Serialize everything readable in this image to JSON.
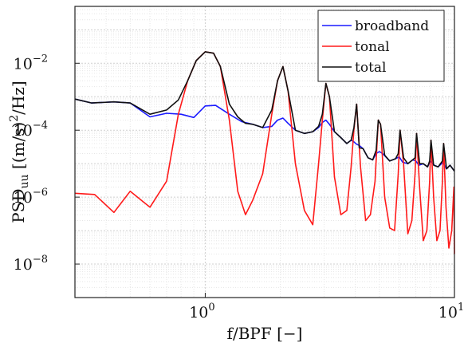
{
  "chart_data": {
    "type": "line",
    "xscale": "log",
    "yscale": "log",
    "xlim": [
      0.3,
      10
    ],
    "ylim": [
      1e-09,
      0.5
    ],
    "xlabel": "f/BPF [−]",
    "ylabel": {
      "base": "PSD",
      "sub": "uu",
      "units": "[(m/s)",
      "sup": "2",
      "tail": "/Hz]"
    },
    "x_ticks": [
      {
        "value": 1,
        "label": "10",
        "exp": "0"
      },
      {
        "value": 10,
        "label": "10",
        "exp": "1"
      }
    ],
    "y_ticks": [
      {
        "value": 1e-08,
        "label": "10",
        "exp": "−8"
      },
      {
        "value": 1e-06,
        "label": "10",
        "exp": "−6"
      },
      {
        "value": 0.0001,
        "label": "10",
        "exp": "−4"
      },
      {
        "value": 0.01,
        "label": "10",
        "exp": "−2"
      }
    ],
    "grid": true,
    "legend_position": "top-right",
    "series": [
      {
        "name": "broadband",
        "color": "#1a1aff",
        "x": [
          0.3,
          0.35,
          0.43,
          0.5,
          0.6,
          0.7,
          0.8,
          0.9,
          1.0,
          1.1,
          1.25,
          1.4,
          1.55,
          1.7,
          1.85,
          1.95,
          2.05,
          2.15,
          2.3,
          2.5,
          2.7,
          2.85,
          2.95,
          3.05,
          3.15,
          3.3,
          3.5,
          3.7,
          3.85,
          3.95,
          4.05,
          4.15,
          4.3,
          4.5,
          4.7,
          4.85,
          5.0,
          5.15,
          5.3,
          5.5,
          5.8,
          6.0,
          6.2,
          6.5,
          6.8,
          7.0,
          7.2,
          7.5,
          7.8,
          8.0,
          8.3,
          8.6,
          9.0,
          9.3,
          9.6,
          10.0
        ],
        "y": [
          0.00085,
          0.00065,
          0.0007,
          0.00065,
          0.00025,
          0.00032,
          0.0003,
          0.00024,
          0.00053,
          0.00055,
          0.0003,
          0.00018,
          0.00015,
          0.00012,
          0.00013,
          0.0002,
          0.00023,
          0.00016,
          0.0001,
          8e-05,
          9e-05,
          0.00012,
          0.00017,
          0.0002,
          0.00015,
          9e-05,
          6e-05,
          4e-05,
          5e-05,
          4.5e-05,
          3.8e-05,
          3.5e-05,
          2.8e-05,
          1.5e-05,
          1.3e-05,
          2e-05,
          2.3e-05,
          2e-05,
          1.6e-05,
          1.2e-05,
          1.4e-05,
          1.6e-05,
          1.1e-05,
          1e-05,
          1.3e-05,
          1.2e-05,
          9e-06,
          1e-05,
          8e-06,
          1.2e-05,
          9e-06,
          8e-06,
          1.1e-05,
          7e-06,
          9e-06,
          6e-06
        ]
      },
      {
        "name": "tonal",
        "color": "#ff1a1a",
        "x": [
          0.3,
          0.36,
          0.43,
          0.5,
          0.6,
          0.7,
          0.78,
          0.85,
          0.92,
          1.0,
          1.08,
          1.15,
          1.25,
          1.35,
          1.45,
          1.55,
          1.7,
          1.85,
          1.95,
          2.05,
          2.15,
          2.3,
          2.5,
          2.7,
          2.85,
          2.95,
          3.05,
          3.15,
          3.3,
          3.5,
          3.7,
          3.85,
          3.95,
          4.05,
          4.2,
          4.4,
          4.6,
          4.8,
          4.95,
          5.05,
          5.25,
          5.5,
          5.75,
          5.95,
          6.05,
          6.25,
          6.5,
          6.75,
          6.95,
          7.05,
          7.25,
          7.5,
          7.75,
          7.95,
          8.05,
          8.25,
          8.5,
          8.75,
          8.95,
          9.05,
          9.25,
          9.5,
          9.75,
          9.95,
          10.0
        ],
        "y": [
          1.3e-06,
          1.2e-06,
          3.5e-07,
          1.5e-06,
          5e-07,
          3e-06,
          0.0003,
          0.003,
          0.012,
          0.022,
          0.02,
          0.008,
          0.0002,
          1.5e-06,
          3e-07,
          8e-07,
          5e-06,
          0.0003,
          0.003,
          0.008,
          0.0015,
          1e-05,
          4e-07,
          1.5e-07,
          1e-05,
          0.0002,
          0.0025,
          0.001,
          4e-06,
          3e-07,
          4e-07,
          8e-06,
          0.0001,
          0.0006,
          8e-06,
          2e-07,
          3e-07,
          3e-06,
          0.0002,
          0.00015,
          1e-06,
          1.2e-07,
          1e-07,
          5e-06,
          0.0001,
          1e-05,
          8e-08,
          2e-07,
          5e-06,
          8e-05,
          2e-06,
          5e-08,
          1e-07,
          3e-06,
          5e-05,
          1e-06,
          5e-08,
          1e-07,
          3e-06,
          4e-05,
          5e-07,
          3e-08,
          1e-07,
          2e-06,
          2e-08
        ]
      },
      {
        "name": "total",
        "color": "#111111",
        "x": [
          0.3,
          0.35,
          0.43,
          0.5,
          0.6,
          0.7,
          0.78,
          0.85,
          0.92,
          1.0,
          1.08,
          1.15,
          1.25,
          1.35,
          1.45,
          1.55,
          1.7,
          1.85,
          1.95,
          2.05,
          2.15,
          2.3,
          2.5,
          2.7,
          2.85,
          2.95,
          3.05,
          3.15,
          3.3,
          3.5,
          3.7,
          3.85,
          3.95,
          4.05,
          4.15,
          4.3,
          4.5,
          4.7,
          4.85,
          4.95,
          5.05,
          5.25,
          5.5,
          5.8,
          5.95,
          6.05,
          6.25,
          6.5,
          6.8,
          6.95,
          7.05,
          7.25,
          7.5,
          7.8,
          7.95,
          8.05,
          8.25,
          8.6,
          8.95,
          9.05,
          9.3,
          9.6,
          10.0
        ],
        "y": [
          0.00085,
          0.00065,
          0.0007,
          0.00065,
          0.0003,
          0.0004,
          0.0008,
          0.003,
          0.012,
          0.022,
          0.02,
          0.008,
          0.0006,
          0.00025,
          0.00016,
          0.00015,
          0.00012,
          0.0004,
          0.003,
          0.008,
          0.0015,
          0.0001,
          8e-05,
          9e-05,
          0.00013,
          0.0003,
          0.0025,
          0.001,
          9e-05,
          6e-05,
          4e-05,
          5e-05,
          0.00012,
          0.0006,
          3e-05,
          2.8e-05,
          1.5e-05,
          1.3e-05,
          2.5e-05,
          0.0002,
          0.00015,
          1.8e-05,
          1.2e-05,
          1.4e-05,
          2e-05,
          0.0001,
          1.5e-05,
          1e-05,
          1.3e-05,
          1.5e-05,
          8e-05,
          1e-05,
          1e-05,
          8e-06,
          1.2e-05,
          5e-05,
          9e-06,
          8e-06,
          1.2e-05,
          4e-05,
          7e-06,
          9e-06,
          6e-06
        ]
      }
    ]
  }
}
